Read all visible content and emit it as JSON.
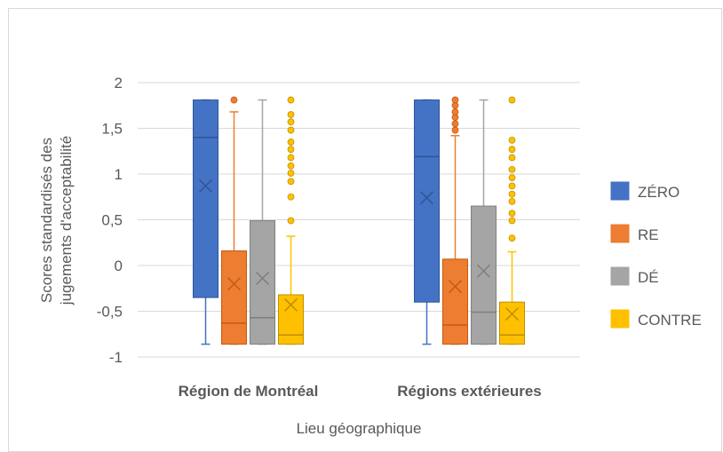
{
  "chart_data": {
    "type": "box",
    "title": "",
    "xlabel": "Lieu géographique",
    "ylabel_lines": [
      "Scores standardisés des",
      "jugements d'acceptabilité"
    ],
    "ylim": [
      -1,
      2
    ],
    "yticks": [
      -1,
      -0.5,
      0,
      0.5,
      1,
      1.5,
      2
    ],
    "ytick_labels": [
      "-1",
      "-0,5",
      "0",
      "0,5",
      "1",
      "1,5",
      "2"
    ],
    "grid": true,
    "legend_position": "right",
    "categories": [
      "Région de Montréal",
      "Régions extérieures"
    ],
    "series": [
      {
        "name": "ZÉRO",
        "color": "#4472c4",
        "boxes": [
          {
            "min": -0.86,
            "q1": -0.35,
            "median": 1.4,
            "q3": 1.81,
            "max": 1.81,
            "mean": 0.87,
            "outliers": []
          },
          {
            "min": -0.86,
            "q1": -0.4,
            "median": 1.19,
            "q3": 1.81,
            "max": 1.81,
            "mean": 0.74,
            "outliers": []
          }
        ]
      },
      {
        "name": "RE",
        "color": "#ed7d31",
        "boxes": [
          {
            "min": -0.86,
            "q1": -0.86,
            "median": -0.63,
            "q3": 0.16,
            "max": 1.68,
            "mean": -0.2,
            "outliers": [
              1.81
            ]
          },
          {
            "min": -0.86,
            "q1": -0.86,
            "median": -0.65,
            "q3": 0.07,
            "max": 1.42,
            "mean": -0.23,
            "outliers": [
              1.48,
              1.55,
              1.62,
              1.68,
              1.75,
              1.81
            ]
          }
        ]
      },
      {
        "name": "DÉ",
        "color": "#a5a5a5",
        "boxes": [
          {
            "min": -0.86,
            "q1": -0.86,
            "median": -0.57,
            "q3": 0.49,
            "max": 1.81,
            "mean": -0.14,
            "outliers": []
          },
          {
            "min": -0.86,
            "q1": -0.86,
            "median": -0.51,
            "q3": 0.65,
            "max": 1.81,
            "mean": -0.06,
            "outliers": []
          }
        ]
      },
      {
        "name": "CONTRE",
        "color": "#ffc000",
        "boxes": [
          {
            "min": -0.86,
            "q1": -0.86,
            "median": -0.76,
            "q3": -0.32,
            "max": 0.32,
            "mean": -0.43,
            "outliers": [
              0.49,
              0.75,
              0.92,
              1.01,
              1.09,
              1.18,
              1.27,
              1.35,
              1.48,
              1.57,
              1.65,
              1.81
            ]
          },
          {
            "min": -0.86,
            "q1": -0.86,
            "median": -0.76,
            "q3": -0.4,
            "max": 0.15,
            "mean": -0.53,
            "outliers": [
              0.3,
              0.49,
              0.57,
              0.7,
              0.78,
              0.87,
              0.96,
              1.05,
              1.18,
              1.27,
              1.37,
              1.81
            ]
          }
        ]
      }
    ]
  }
}
